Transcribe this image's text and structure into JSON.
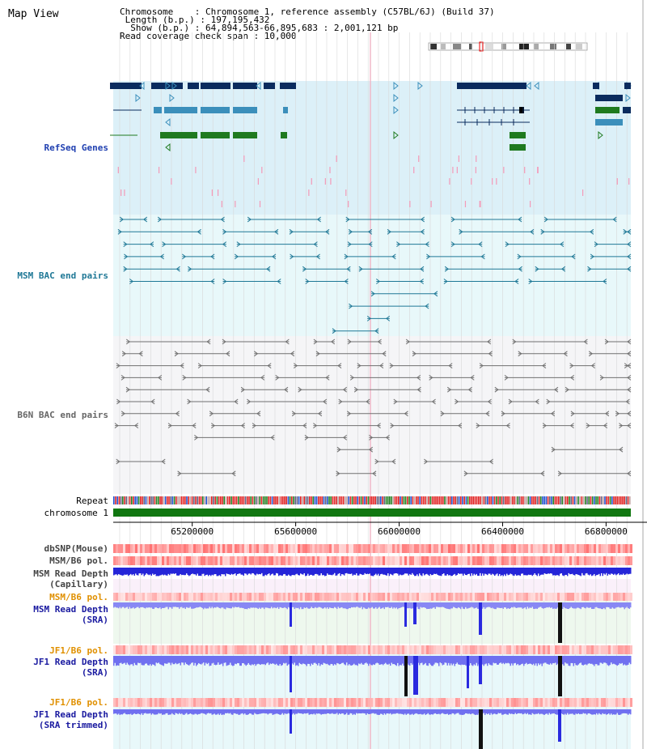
{
  "header": {
    "title": "Map View",
    "info_lines": [
      "Chromosome    : Chromosome 1, reference assembly (C57BL/6J) (Build 37)",
      " Length (b.p.) : 197,195,432",
      "  Show (b.p.) : 64,894,563-66,895,683 : 2,001,121 bp",
      "Read coverage check span : 10,000"
    ]
  },
  "colors": {
    "refseq_bg": "#dcf0f8",
    "msm_bg": "#e8f8fa",
    "b6n_bg": "#f5f5f7",
    "refseq_dark": "#0a2b5e",
    "refseq_mid": "#3b8fbb",
    "refseq_green": "#1f7a1f",
    "msm_pair": "#1f7896",
    "b6n_pair": "#707070",
    "chrom_bar": "#117711",
    "read_blue": "#2a2adf",
    "snp_red": "#f05050"
  },
  "tracks": {
    "refseq": "RefSeq Genes",
    "msm_bac": "MSM BAC end pairs",
    "b6n_bac": "B6N BAC end pairs",
    "repeat": "Repeat",
    "chromosome": "chromosome 1",
    "dbsnp": "dbSNP(Mouse)",
    "msm_b6_pol": "MSM/B6 pol.",
    "msm_depth_cap": "MSM Read Depth",
    "msm_depth_cap2": "(Capillary)",
    "msm_b6_pol2": "MSM/B6 pol.",
    "msm_depth_sra": "MSM Read Depth",
    "msm_depth_sra2": "(SRA)",
    "jf1_pol": "JF1/B6 pol.",
    "jf1_depth": "JF1 Read Depth",
    "jf1_depth2": "(SRA)",
    "jf1_pol2": "JF1/B6 pol.",
    "jf1_trim": "JF1 Read Depth",
    "jf1_trim2": "(SRA trimmed)"
  },
  "chart_data": {
    "type": "genome-browser",
    "x_range": [
      64894563,
      66895683
    ],
    "ticks": [
      65200000,
      65600000,
      66000000,
      66400000,
      66800000
    ],
    "tick_labels": [
      "65200000",
      "65600000",
      "66000000",
      "66400000",
      "66800000"
    ]
  }
}
